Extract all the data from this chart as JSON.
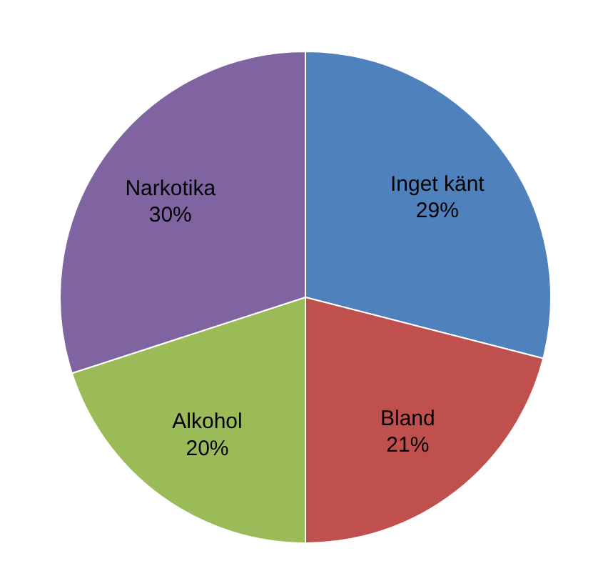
{
  "chart_data": {
    "type": "pie",
    "categories": [
      "Inget känt",
      "Bland",
      "Alkohol",
      "Narkotika"
    ],
    "values": [
      29,
      21,
      20,
      30
    ],
    "value_labels": [
      "29%",
      "21%",
      "20%",
      "30%"
    ],
    "colors": [
      "#4f81bd",
      "#c0504d",
      "#9bbb59",
      "#8064a2"
    ]
  }
}
